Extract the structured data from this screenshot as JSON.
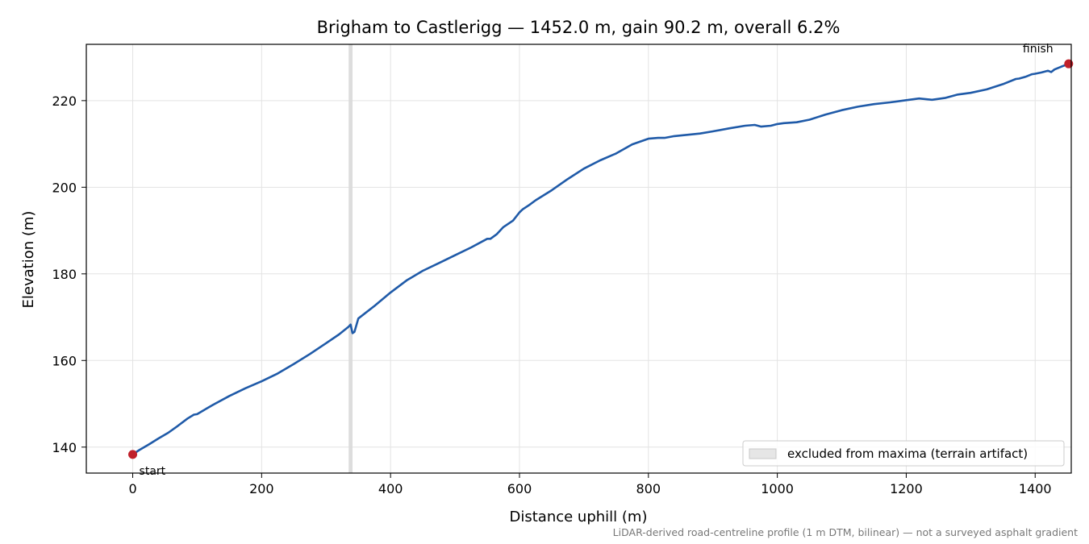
{
  "chart_data": {
    "type": "line",
    "title": "Brigham to Castlerigg — 1452.0 m, gain 90.2 m, overall 6.2%",
    "xlabel": "Distance uphill (m)",
    "ylabel": "Elevation (m)",
    "xlim": [
      -72,
      1452.0
    ],
    "ylim": [
      134,
      233
    ],
    "x_ticks": [
      0,
      200,
      400,
      600,
      800,
      1000,
      1200,
      1400
    ],
    "y_ticks": [
      140,
      160,
      180,
      200,
      220
    ],
    "grid": true,
    "series": [
      {
        "color": "#1f5aa8",
        "x": [
          0,
          10,
          25,
          40,
          55,
          70,
          85,
          95,
          100,
          110,
          125,
          150,
          175,
          200,
          225,
          250,
          275,
          300,
          320,
          335,
          338,
          341,
          344,
          350,
          375,
          400,
          425,
          450,
          475,
          500,
          525,
          550,
          555,
          565,
          575,
          590,
          600,
          605,
          615,
          625,
          650,
          675,
          700,
          725,
          750,
          775,
          800,
          815,
          825,
          840,
          860,
          880,
          900,
          925,
          950,
          965,
          975,
          990,
          1000,
          1010,
          1030,
          1050,
          1075,
          1100,
          1125,
          1150,
          1175,
          1200,
          1220,
          1240,
          1260,
          1280,
          1300,
          1325,
          1350,
          1370,
          1375,
          1385,
          1395,
          1400,
          1410,
          1420,
          1425,
          1430,
          1440,
          1452
        ],
        "y": [
          138.3,
          139.3,
          140.6,
          142.0,
          143.3,
          144.9,
          146.6,
          147.5,
          147.6,
          148.5,
          149.8,
          151.8,
          153.6,
          155.2,
          157.0,
          159.2,
          161.5,
          164.0,
          166.0,
          167.8,
          168.3,
          166.3,
          166.6,
          169.7,
          172.6,
          175.7,
          178.5,
          180.7,
          182.5,
          184.3,
          186.1,
          188.1,
          188.1,
          189.2,
          190.8,
          192.3,
          194.2,
          194.9,
          195.9,
          197.0,
          199.3,
          201.9,
          204.3,
          206.2,
          207.8,
          209.9,
          211.2,
          211.4,
          211.4,
          211.8,
          212.1,
          212.4,
          212.9,
          213.6,
          214.2,
          214.4,
          214.0,
          214.2,
          214.6,
          214.8,
          215.0,
          215.6,
          216.8,
          217.8,
          218.6,
          219.2,
          219.6,
          220.1,
          220.5,
          220.2,
          220.6,
          221.4,
          221.8,
          222.6,
          223.8,
          225.0,
          225.1,
          225.5,
          226.1,
          226.2,
          226.5,
          226.9,
          226.6,
          227.2,
          227.8,
          228.5
        ]
      }
    ],
    "excluded_band": {
      "x0": 335,
      "x1": 341,
      "color": "#d9d9d9"
    },
    "markers": [
      {
        "x": 0,
        "y": 138.3,
        "label": "start",
        "color": "#c0202a"
      },
      {
        "x": 1452,
        "y": 228.5,
        "label": "finish",
        "color": "#c0202a"
      }
    ],
    "legend": {
      "position": "lower-right",
      "entries": [
        {
          "label": "excluded from maxima (terrain artifact)",
          "swatch_color": "#e6e6e6"
        }
      ]
    },
    "footnote": "LiDAR-derived road-centreline profile (1 m DTM, bilinear) — not a surveyed asphalt gradient"
  }
}
